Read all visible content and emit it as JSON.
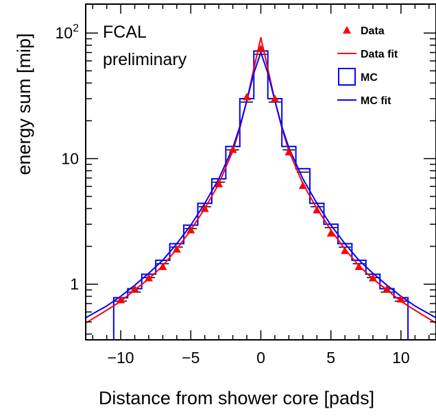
{
  "chart_data": {
    "type": "scatter",
    "xlabel": "Distance from shower core [pads]",
    "ylabel": "energy sum [mip]",
    "annotations": [
      "FCAL",
      "preliminary"
    ],
    "x_range": [
      -12.5,
      12.5
    ],
    "y_range": [
      0.36,
      170
    ],
    "y_scale": "log",
    "grid": false,
    "legend_position": "top-right",
    "x_ticks": [
      -10,
      -5,
      0,
      5,
      10
    ],
    "x_tick_labels": [
      "−10",
      "−5",
      "0",
      "5",
      "10"
    ],
    "y_ticks": [
      1,
      10,
      100
    ],
    "y_tick_labels": [
      "1",
      "10",
      "10^2"
    ],
    "colors": {
      "data": "#ff0000",
      "mc": "#0000ff",
      "axis": "#000000"
    },
    "legend": [
      {
        "label": "Data",
        "marker": "triangle",
        "color": "#ff0000"
      },
      {
        "label": "Data fit",
        "marker": "line",
        "color": "#ff0000"
      },
      {
        "label": "MC",
        "marker": "box",
        "color": "#0000ff"
      },
      {
        "label": "MC fit",
        "marker": "line",
        "color": "#0000ff"
      }
    ],
    "series": [
      {
        "name": "Data",
        "kind": "points",
        "color": "#ff0000",
        "x": [
          -10,
          -9,
          -8,
          -7,
          -6,
          -5,
          -4,
          -3,
          -2,
          -1,
          0,
          1,
          2,
          3,
          4,
          5,
          6,
          7,
          8,
          9,
          10
        ],
        "y": [
          0.75,
          0.92,
          1.12,
          1.38,
          1.9,
          2.7,
          4.0,
          6.3,
          11.8,
          31,
          75,
          30,
          11.3,
          6.1,
          3.9,
          2.55,
          1.85,
          1.38,
          1.12,
          0.92,
          0.76
        ]
      },
      {
        "name": "MC",
        "kind": "histogram",
        "color": "#0000ff",
        "bin_edges": [
          -10.5,
          -9.5,
          -8.5,
          -7.5,
          -6.5,
          -5.5,
          -4.5,
          -3.5,
          -2.5,
          -1.5,
          -0.5,
          0.5,
          1.5,
          2.5,
          3.5,
          4.5,
          5.5,
          6.5,
          7.5,
          8.5,
          9.5,
          10.5
        ],
        "values": [
          0.78,
          0.92,
          1.2,
          1.55,
          2.1,
          2.95,
          4.4,
          6.9,
          12.5,
          30,
          72,
          30,
          12.5,
          8.3,
          4.4,
          3.0,
          2.1,
          1.55,
          1.2,
          0.92,
          0.78
        ]
      },
      {
        "name": "Data fit",
        "kind": "line",
        "color": "#ff0000",
        "x": [
          -12.5,
          -11,
          -10,
          -9,
          -8,
          -7,
          -6,
          -5,
          -4,
          -3,
          -2,
          -1.5,
          -1,
          -0.5,
          0,
          0.5,
          1,
          1.5,
          2,
          3,
          4,
          5,
          6,
          7,
          8,
          9,
          10,
          11,
          12.5
        ],
        "y": [
          0.49,
          0.62,
          0.73,
          0.9,
          1.1,
          1.4,
          1.9,
          2.7,
          4.0,
          6.3,
          11.5,
          17.5,
          29,
          52,
          92,
          52,
          29,
          17.5,
          11.5,
          6.3,
          4.0,
          2.7,
          1.9,
          1.4,
          1.1,
          0.9,
          0.73,
          0.62,
          0.49
        ]
      },
      {
        "name": "MC fit",
        "kind": "line",
        "color": "#0000ff",
        "x": [
          -12.5,
          -11,
          -10,
          -9,
          -8,
          -7,
          -6,
          -5,
          -4,
          -3,
          -2,
          -1.5,
          -1,
          -0.5,
          0,
          0.5,
          1,
          1.5,
          2,
          3,
          4,
          5,
          6,
          7,
          8,
          9,
          10,
          11,
          12.5
        ],
        "y": [
          0.54,
          0.67,
          0.8,
          0.98,
          1.22,
          1.55,
          2.1,
          2.95,
          4.4,
          6.9,
          12.2,
          18,
          29,
          48,
          70,
          48,
          29,
          18,
          12.2,
          6.9,
          4.4,
          2.95,
          2.1,
          1.55,
          1.22,
          0.98,
          0.8,
          0.67,
          0.54
        ]
      }
    ]
  }
}
